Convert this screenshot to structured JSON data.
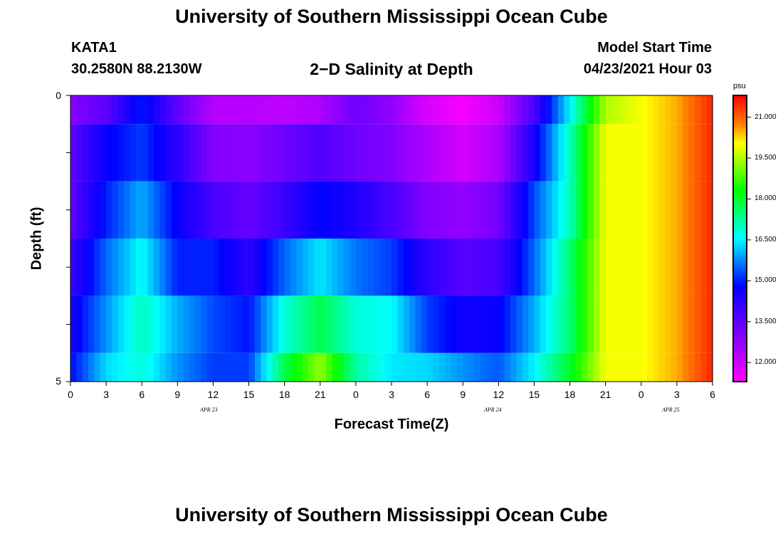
{
  "header": {
    "title_top": "University of Southern Mississippi Ocean Cube",
    "title_bottom": "University of Southern Mississippi Ocean Cube",
    "station_id": "KATA1",
    "coordinates": "30.2580N  88.2130W",
    "model_start_label": "Model Start Time",
    "model_start_value": "04/23/2021 Hour 03"
  },
  "chart_data": {
    "type": "heatmap",
    "title": "2−D Salinity at Depth",
    "xlabel": "Forecast Time(Z)",
    "ylabel": "Depth (ft)",
    "y_tick_labels": [
      "0",
      "5"
    ],
    "ylim": [
      0,
      5
    ],
    "x_tick_labels": [
      "0",
      "3",
      "6",
      "9",
      "12",
      "15",
      "18",
      "21",
      "0",
      "3",
      "6",
      "9",
      "12",
      "15",
      "18",
      "21",
      "0",
      "3",
      "6"
    ],
    "date_labels": [
      "APR  23",
      "APR  24",
      "APR  25"
    ],
    "colorbar": {
      "unit": "psu",
      "ticks": [
        "21.000",
        "19.500",
        "18.000",
        "16.500",
        "15.000",
        "13.500",
        "12.000"
      ],
      "range": [
        11.3,
        21.8
      ]
    },
    "hours": [
      0,
      3,
      6,
      9,
      12,
      15,
      18,
      21,
      24,
      27,
      30,
      33,
      36,
      39,
      42,
      45,
      48,
      51,
      54
    ],
    "rows": [
      {
        "depth": "0-0.5",
        "values": [
          13.0,
          13.5,
          15.0,
          13.5,
          12.3,
          12.3,
          12.2,
          12.4,
          13.3,
          12.8,
          11.8,
          11.4,
          12.0,
          13.8,
          16.5,
          19.5,
          20.0,
          20.5,
          21.5
        ]
      },
      {
        "depth": "0.5-1.5",
        "values": [
          13.5,
          14.7,
          15.2,
          14.2,
          13.0,
          12.9,
          13.3,
          13.7,
          13.3,
          13.0,
          12.4,
          11.9,
          12.4,
          14.5,
          17.0,
          20.0,
          20.0,
          20.5,
          21.5
        ]
      },
      {
        "depth": "1.5-2.5",
        "values": [
          13.5,
          15.0,
          16.0,
          14.7,
          13.8,
          13.4,
          14.0,
          14.8,
          14.4,
          13.8,
          13.0,
          12.8,
          13.2,
          15.3,
          17.0,
          20.0,
          20.0,
          20.5,
          21.5
        ]
      },
      {
        "depth": "2.5-3.5",
        "values": [
          14.0,
          15.5,
          16.6,
          15.0,
          15.0,
          14.2,
          15.5,
          16.4,
          15.6,
          15.2,
          14.2,
          13.6,
          13.8,
          15.5,
          17.5,
          20.0,
          20.0,
          20.5,
          21.5
        ]
      },
      {
        "depth": "3.5-4.5",
        "values": [
          14.5,
          15.8,
          17.0,
          16.0,
          15.3,
          14.9,
          16.8,
          17.8,
          16.8,
          16.6,
          15.2,
          14.6,
          14.7,
          16.0,
          17.5,
          20.0,
          20.0,
          20.5,
          21.5
        ]
      },
      {
        "depth": "4.5-5",
        "values": [
          14.8,
          16.3,
          16.8,
          15.8,
          15.2,
          15.2,
          17.8,
          19.3,
          17.2,
          16.4,
          16.3,
          15.8,
          15.4,
          16.5,
          18.0,
          20.0,
          20.0,
          20.5,
          21.5
        ]
      }
    ]
  }
}
